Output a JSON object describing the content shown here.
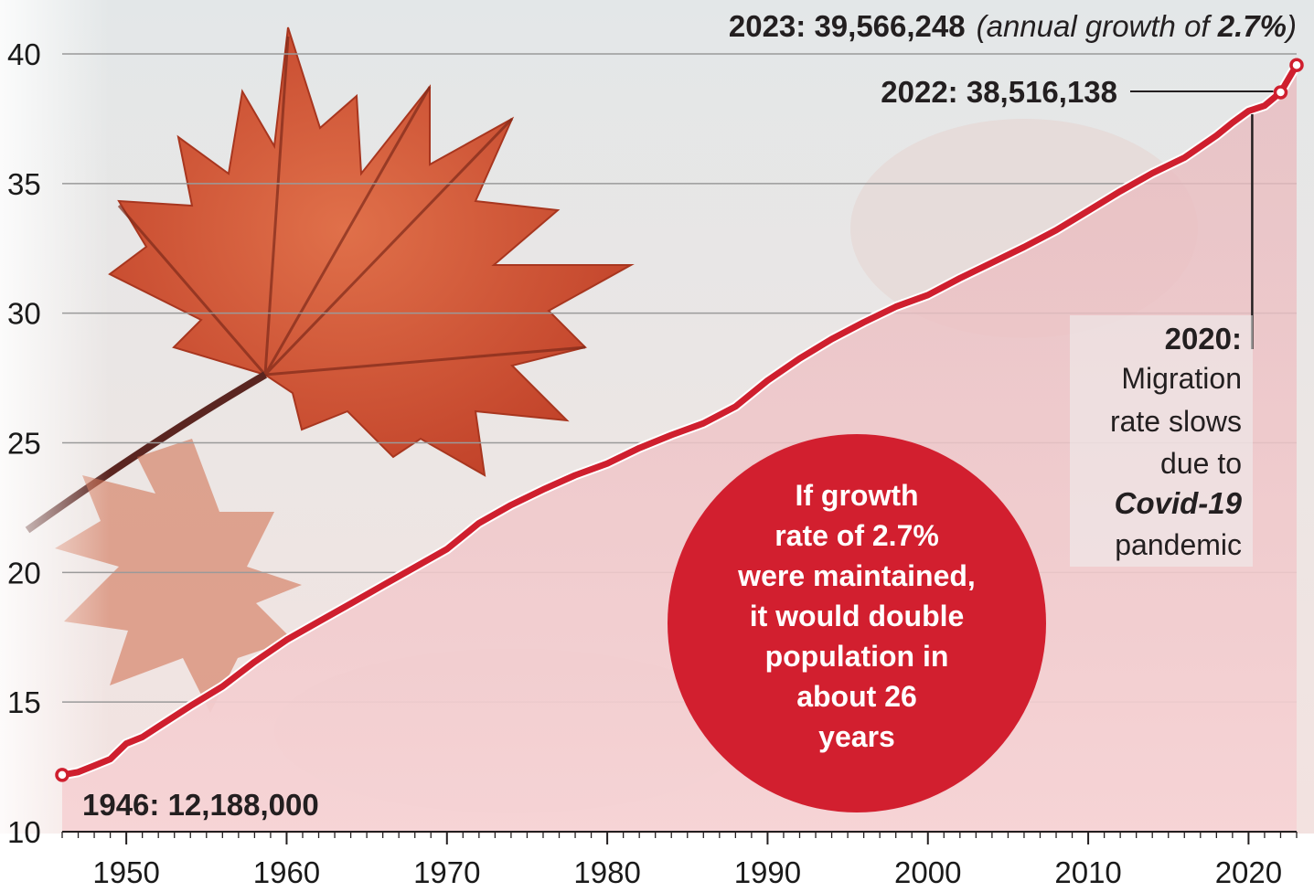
{
  "chart_data": {
    "type": "line",
    "title": "",
    "xlabel": "",
    "ylabel": "",
    "xlim": [
      1946,
      2023
    ],
    "ylim": [
      10,
      41
    ],
    "grid": true,
    "x_ticks": [
      1950,
      1960,
      1970,
      1980,
      1990,
      2000,
      2010,
      2020
    ],
    "y_ticks": [
      10,
      15,
      20,
      25,
      30,
      35,
      40
    ],
    "series": [
      {
        "name": "",
        "color": "#cf1f2e",
        "x": [
          1946,
          1947,
          1948,
          1949,
          1950,
          1951,
          1952,
          1954,
          1956,
          1958,
          1960,
          1962,
          1964,
          1966,
          1968,
          1970,
          1971,
          1972,
          1974,
          1976,
          1978,
          1980,
          1982,
          1984,
          1986,
          1988,
          1990,
          1992,
          1994,
          1996,
          1998,
          2000,
          2002,
          2004,
          2006,
          2008,
          2010,
          2012,
          2014,
          2016,
          2018,
          2019,
          2020,
          2021,
          2022,
          2023
        ],
        "y": [
          12.19,
          12.3,
          12.55,
          12.8,
          13.4,
          13.65,
          14.05,
          14.85,
          15.6,
          16.55,
          17.4,
          18.1,
          18.8,
          19.5,
          20.2,
          20.9,
          21.4,
          21.9,
          22.6,
          23.2,
          23.75,
          24.2,
          24.8,
          25.3,
          25.75,
          26.4,
          27.4,
          28.25,
          29.0,
          29.65,
          30.25,
          30.7,
          31.35,
          31.95,
          32.55,
          33.2,
          33.95,
          34.7,
          35.4,
          36.0,
          36.85,
          37.35,
          37.8,
          38.0,
          38.52,
          39.57
        ]
      }
    ],
    "annotations": {
      "end_bold": "2023: 39,566,248",
      "end_italic": "(annual growth of ",
      "end_italic_bold": "2.7%",
      "end_italic_close": ")",
      "p2022": "2022: 38,516,138",
      "p1946": "1946: 12,188,000",
      "note_year": "2020:",
      "note_lines": [
        "Migration",
        "rate slows",
        "due to",
        "pandemic"
      ],
      "note_emph": "Covid-19",
      "bubble_lines": [
        "If growth",
        "rate of 2.7%",
        "were maintained,",
        "it would double",
        "population in",
        "about 26",
        "years"
      ],
      "bubble_color": "#d21f2f"
    },
    "highlight_points": [
      {
        "x": 1946,
        "y": 12.19
      },
      {
        "x": 2022,
        "y": 38.52
      },
      {
        "x": 2023,
        "y": 39.57
      }
    ]
  }
}
